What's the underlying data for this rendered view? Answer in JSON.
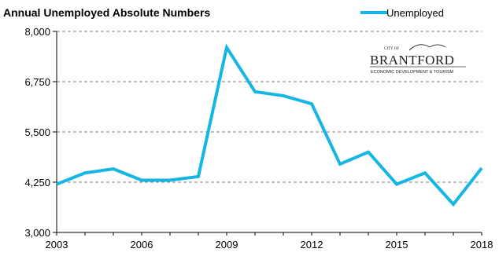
{
  "chart_data": {
    "type": "line",
    "title": "Annual Unemployed Absolute Numbers",
    "x": [
      2003,
      2004,
      2005,
      2006,
      2007,
      2008,
      2009,
      2010,
      2011,
      2012,
      2013,
      2014,
      2015,
      2016,
      2017,
      2018
    ],
    "series": [
      {
        "name": "Unemployed",
        "color": "#16b6e4",
        "values": [
          4200,
          4480,
          4580,
          4300,
          4300,
          4390,
          7600,
          6500,
          6400,
          6200,
          4700,
          5000,
          4200,
          4480,
          3700,
          4600
        ]
      }
    ],
    "x_ticks": [
      2003,
      2006,
      2009,
      2012,
      2015,
      2018
    ],
    "y_ticks": [
      3000,
      4250,
      5500,
      6750,
      8000
    ],
    "y_tick_labels": [
      "3,000",
      "4,250",
      "5,500",
      "6,750",
      "8,000"
    ],
    "ylim": [
      3000,
      8000
    ],
    "xlim": [
      2003,
      2018
    ],
    "grid": "horizontal dashed",
    "legend_position": "top-right"
  },
  "logo": {
    "city_of": "CITY OF",
    "name": "BRANTFORD",
    "subtitle": "ECONOMIC DEVELOPMENT & TOURISM"
  }
}
